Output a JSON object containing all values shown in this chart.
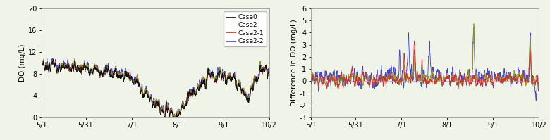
{
  "background_color": "#f0f4e8",
  "left_panel": {
    "ylabel": "DO (mg/L)",
    "ylim": [
      0,
      20
    ],
    "yticks": [
      0,
      4,
      8,
      12,
      16,
      20
    ],
    "xtick_labels": [
      "5/1",
      "5/31",
      "7/1",
      "8/1",
      "9/1",
      "10/2"
    ],
    "legend": [
      "Case0",
      "Case2",
      "Case2-1",
      "Case2-2"
    ],
    "colors": [
      "#111111",
      "#999922",
      "#cc3333",
      "#4444cc"
    ]
  },
  "right_panel": {
    "ylabel": "Difference in DO (mg/L)",
    "ylim": [
      -3,
      6
    ],
    "yticks": [
      -3,
      -2,
      -1,
      0,
      1,
      2,
      3,
      4,
      5,
      6
    ],
    "xtick_labels": [
      "5/1",
      "5/31",
      "7/1",
      "8/1",
      "9/1",
      "10/2"
    ],
    "colors": [
      "#999922",
      "#cc3333",
      "#4444cc"
    ]
  },
  "x_tick_days": [
    0,
    30,
    61,
    92,
    123,
    154
  ],
  "n_days": 154,
  "lw": 0.6
}
